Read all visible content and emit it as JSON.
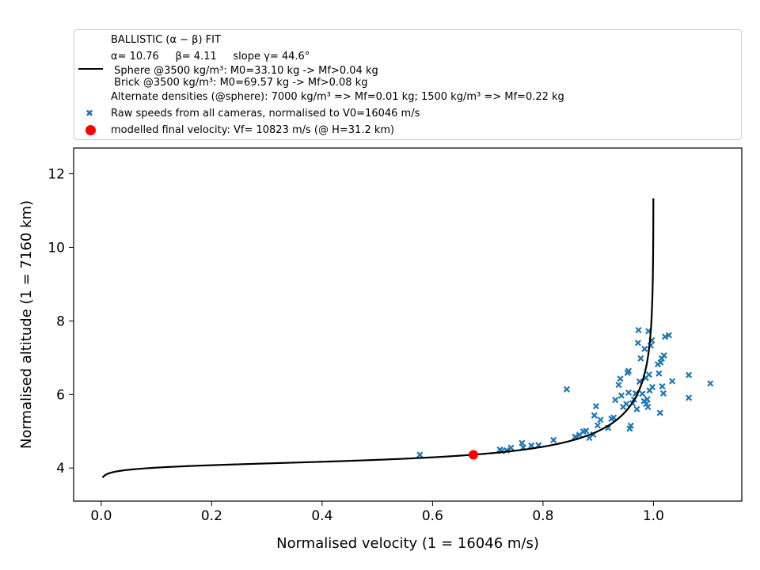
{
  "chart_data": {
    "type": "scatter",
    "xlabel": "Normalised velocity (1 = 16046 m/s)",
    "ylabel": "Normalised altitude (1 = 7160 km)",
    "xlim": [
      -0.05,
      1.16
    ],
    "ylim": [
      3.1,
      12.7
    ],
    "xticks": [
      "0.0",
      "0.2",
      "0.4",
      "0.6",
      "0.8",
      "1.0"
    ],
    "xtick_values": [
      0.0,
      0.2,
      0.4,
      0.6,
      0.8,
      1.0
    ],
    "yticks": [
      "4",
      "6",
      "8",
      "10",
      "12"
    ],
    "ytick_values": [
      4,
      6,
      8,
      10,
      12
    ],
    "grid": false,
    "legend_position": "above",
    "legend": {
      "line1": "BALLISTIC (α − β) FIT",
      "line2": "α= 10.76     β= 4.11     slope γ= 44.6°",
      "line3": " Sphere @3500 kg/m³: M0=33.10 kg -> Mf>0.04 kg",
      "line4": " Brick @3500 kg/m³: M0=69.57 kg -> Mf>0.08 kg",
      "line5": "Alternate densities (@sphere): 7000 kg/m³ => Mf=0.01 kg; 1500 kg/m³ => Mf=0.22 kg",
      "scatter_label": "Raw speeds from all cameras, normalised to V0=16046 m/s",
      "point_label": "modelled final velocity: Vf= 10823 m/s (@ H=31.2 km)"
    },
    "fit_alpha": 10.76,
    "fit_beta": 4.11,
    "fit_color": "#000000",
    "scatter_color": "#1f77b4",
    "point_color": "#ff0000",
    "final_point": {
      "x": 0.674,
      "y": 4.36
    },
    "scatter_points": [
      {
        "x": 0.577,
        "y": 4.36
      },
      {
        "x": 0.722,
        "y": 4.5
      },
      {
        "x": 0.725,
        "y": 4.46
      },
      {
        "x": 0.734,
        "y": 4.48
      },
      {
        "x": 0.742,
        "y": 4.55
      },
      {
        "x": 0.762,
        "y": 4.68
      },
      {
        "x": 0.764,
        "y": 4.56
      },
      {
        "x": 0.779,
        "y": 4.61
      },
      {
        "x": 0.792,
        "y": 4.62
      },
      {
        "x": 0.819,
        "y": 4.76
      },
      {
        "x": 0.843,
        "y": 6.14
      },
      {
        "x": 0.858,
        "y": 4.85
      },
      {
        "x": 0.866,
        "y": 4.9
      },
      {
        "x": 0.873,
        "y": 4.99
      },
      {
        "x": 0.878,
        "y": 5.01
      },
      {
        "x": 0.884,
        "y": 4.82
      },
      {
        "x": 0.891,
        "y": 4.91
      },
      {
        "x": 0.893,
        "y": 5.43
      },
      {
        "x": 0.896,
        "y": 5.68
      },
      {
        "x": 0.899,
        "y": 5.16
      },
      {
        "x": 0.904,
        "y": 5.31
      },
      {
        "x": 0.918,
        "y": 5.09
      },
      {
        "x": 0.924,
        "y": 5.34
      },
      {
        "x": 0.928,
        "y": 5.37
      },
      {
        "x": 0.931,
        "y": 5.85
      },
      {
        "x": 0.937,
        "y": 6.26
      },
      {
        "x": 0.94,
        "y": 6.43
      },
      {
        "x": 0.942,
        "y": 5.97
      },
      {
        "x": 0.945,
        "y": 5.66
      },
      {
        "x": 0.951,
        "y": 5.74
      },
      {
        "x": 0.953,
        "y": 6.59
      },
      {
        "x": 0.955,
        "y": 6.64
      },
      {
        "x": 0.955,
        "y": 6.05
      },
      {
        "x": 0.957,
        "y": 5.07
      },
      {
        "x": 0.959,
        "y": 5.15
      },
      {
        "x": 0.962,
        "y": 5.76
      },
      {
        "x": 0.965,
        "y": 5.86
      },
      {
        "x": 0.968,
        "y": 6.03
      },
      {
        "x": 0.97,
        "y": 5.6
      },
      {
        "x": 0.972,
        "y": 7.4
      },
      {
        "x": 0.973,
        "y": 7.75
      },
      {
        "x": 0.975,
        "y": 6.35
      },
      {
        "x": 0.977,
        "y": 6.98
      },
      {
        "x": 0.98,
        "y": 6.02
      },
      {
        "x": 0.983,
        "y": 5.82
      },
      {
        "x": 0.984,
        "y": 7.24
      },
      {
        "x": 0.986,
        "y": 6.45
      },
      {
        "x": 0.987,
        "y": 5.74
      },
      {
        "x": 0.989,
        "y": 5.87
      },
      {
        "x": 0.99,
        "y": 5.66
      },
      {
        "x": 0.991,
        "y": 7.72
      },
      {
        "x": 0.992,
        "y": 6.54
      },
      {
        "x": 0.993,
        "y": 6.11
      },
      {
        "x": 0.995,
        "y": 7.33
      },
      {
        "x": 0.997,
        "y": 7.47
      },
      {
        "x": 0.998,
        "y": 6.2
      },
      {
        "x": 1.008,
        "y": 6.82
      },
      {
        "x": 1.01,
        "y": 6.57
      },
      {
        "x": 1.012,
        "y": 5.5
      },
      {
        "x": 1.013,
        "y": 6.87
      },
      {
        "x": 1.015,
        "y": 6.98
      },
      {
        "x": 1.016,
        "y": 6.22
      },
      {
        "x": 1.018,
        "y": 6.03
      },
      {
        "x": 1.019,
        "y": 7.06
      },
      {
        "x": 1.021,
        "y": 7.57
      },
      {
        "x": 1.028,
        "y": 7.61
      },
      {
        "x": 1.034,
        "y": 6.36
      },
      {
        "x": 1.064,
        "y": 6.53
      },
      {
        "x": 1.064,
        "y": 5.91
      },
      {
        "x": 1.103,
        "y": 6.3
      }
    ]
  }
}
